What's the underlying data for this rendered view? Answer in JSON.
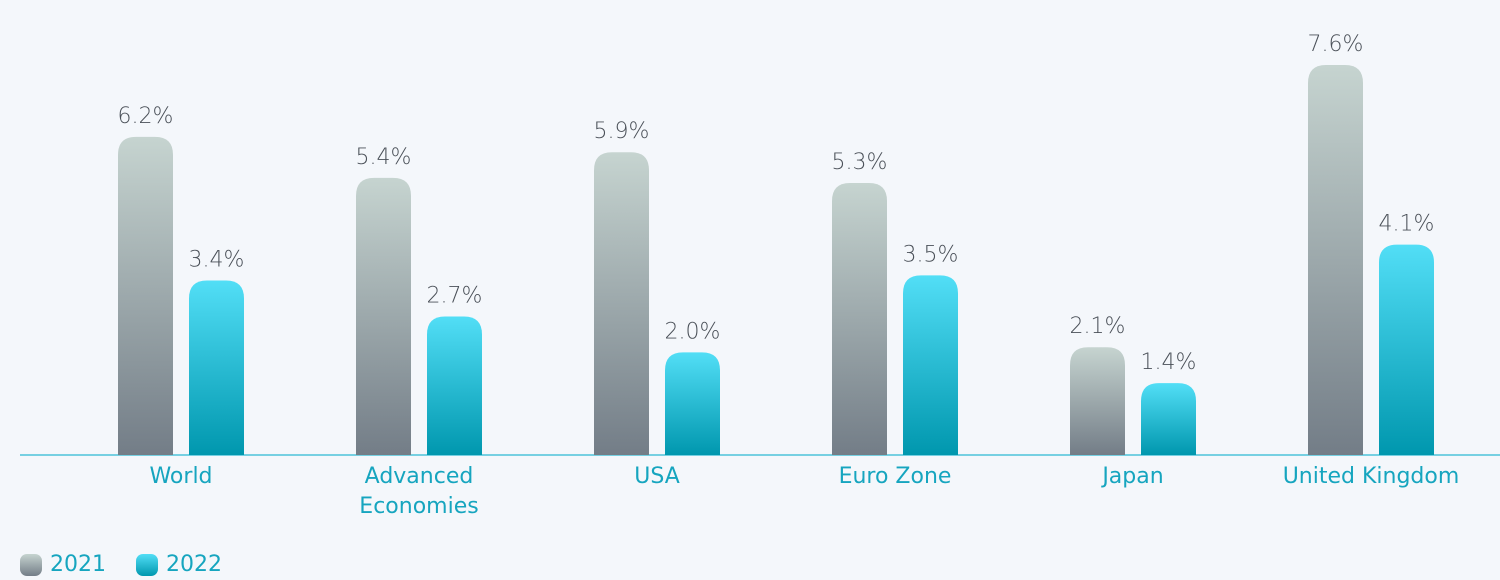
{
  "chart_data": {
    "type": "bar",
    "categories": [
      "World",
      "Advanced\nEconomies",
      "USA",
      "Euro Zone",
      "Japan",
      "United Kingdom"
    ],
    "series": [
      {
        "name": "2021",
        "color": [
          "#c6d4d0",
          "#737d87"
        ],
        "values": [
          6.2,
          5.4,
          5.9,
          5.3,
          2.1,
          7.6
        ],
        "value_labels": [
          "6.2%",
          "5.4%",
          "5.9%",
          "5.3%",
          "2.1%",
          "7.6%"
        ]
      },
      {
        "name": "2022",
        "color": [
          "#52def6",
          "#0097ae"
        ],
        "values": [
          3.4,
          2.7,
          2.0,
          3.5,
          1.4,
          4.1
        ],
        "value_labels": [
          "3.4%",
          "2.7%",
          "2.0%",
          "3.5%",
          "1.4%",
          "4.1%"
        ]
      }
    ]
  }
}
